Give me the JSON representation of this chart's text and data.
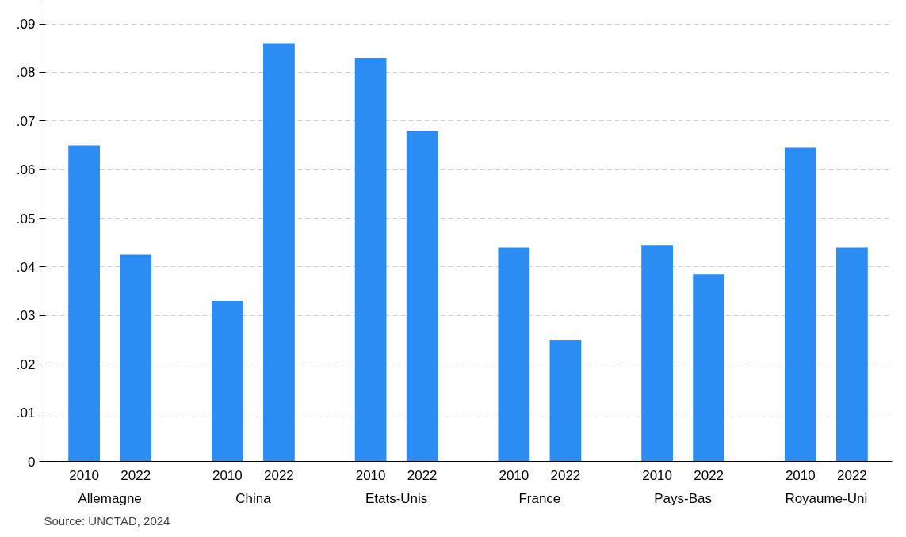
{
  "chart_data": {
    "type": "bar",
    "categories": [
      "Allemagne",
      "China",
      "Etats-Unis",
      "France",
      "Pays-Bas",
      "Royaume-Uni"
    ],
    "series": [
      {
        "name": "2010",
        "color": "#2b8cf3",
        "values": [
          0.065,
          0.033,
          0.083,
          0.044,
          0.0445,
          0.0645
        ]
      },
      {
        "name": "2022",
        "color": "#2b8cf3",
        "values": [
          0.0425,
          0.086,
          0.068,
          0.025,
          0.0385,
          0.044
        ]
      }
    ],
    "ylim": [
      0,
      0.094
    ],
    "yticks": [
      0,
      {
        "value": 0.01,
        "label": ".01"
      },
      {
        "value": 0.02,
        "label": ".02"
      },
      {
        "value": 0.03,
        "label": ".03"
      },
      {
        "value": 0.04,
        "label": ".04"
      },
      {
        "value": 0.05,
        "label": ".05"
      },
      {
        "value": 0.06,
        "label": ".06"
      },
      {
        "value": 0.07,
        "label": ".07"
      },
      {
        "value": 0.08,
        "label": ".08"
      },
      {
        "value": 0.09,
        "label": ".09"
      }
    ],
    "grid": "y",
    "annotations": [
      "Source: UNCTAD, 2024"
    ]
  }
}
